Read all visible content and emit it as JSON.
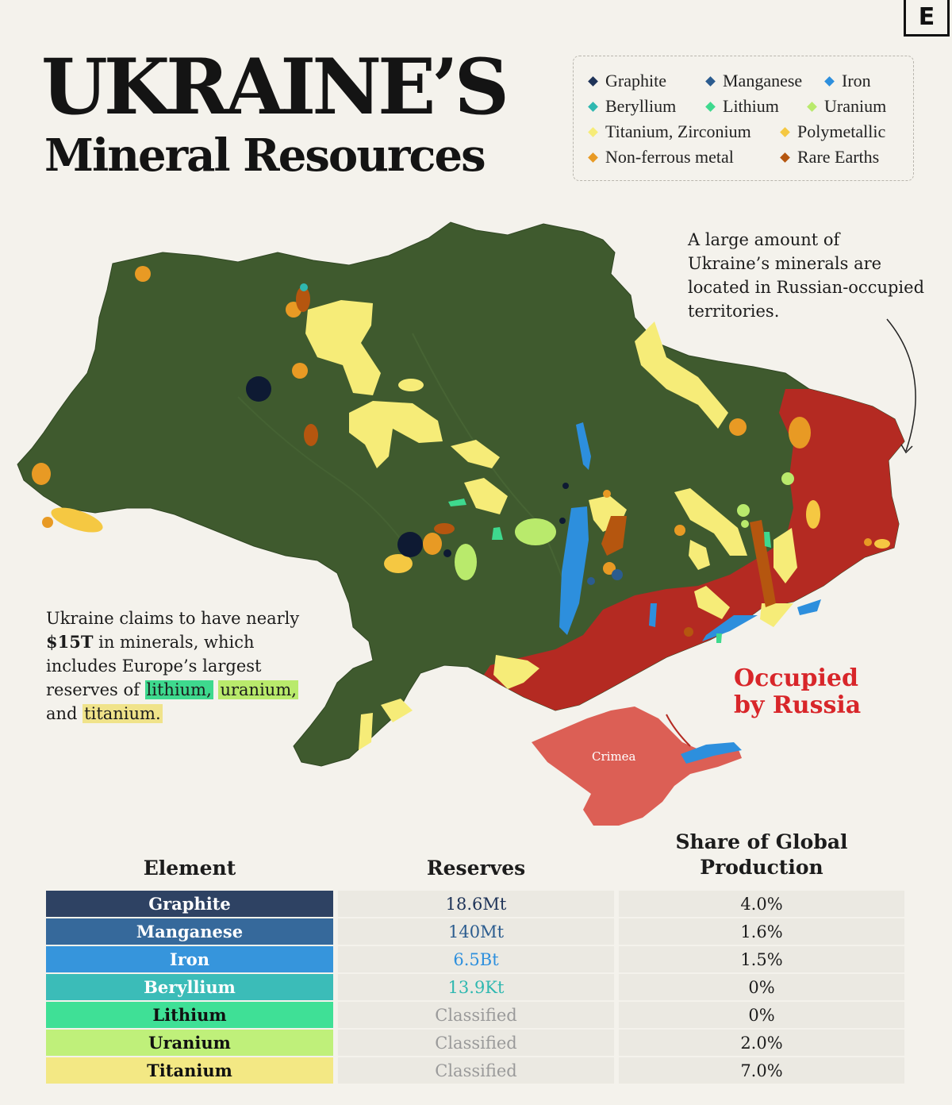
{
  "logo": "E",
  "title": "UKRAINE’S",
  "subtitle": "Mineral Resources",
  "legend": [
    {
      "label": "Graphite",
      "color": "#1e3358"
    },
    {
      "label": "Manganese",
      "color": "#2b5c8f"
    },
    {
      "label": "Iron",
      "color": "#2d8fdd"
    },
    {
      "label": "Beryllium",
      "color": "#2fb8b0"
    },
    {
      "label": "Lithium",
      "color": "#3ed98e"
    },
    {
      "label": "Uranium",
      "color": "#b9ea6c"
    },
    {
      "label": "Titanium, Zirconium",
      "color": "#f6ec78"
    },
    {
      "label": "Polymetallic",
      "color": "#f5c842"
    },
    {
      "label": "Non-ferrous metal",
      "color": "#e89a24"
    },
    {
      "label": "Rare Earths",
      "color": "#b5560f"
    }
  ],
  "annotations": {
    "right_note": "A large amount of Ukraine’s minerals are located in Russian-occupied territories.",
    "left_note": {
      "part1": "Ukraine claims to have nearly ",
      "bold": "$15T",
      "part2": " in minerals, which includes Europe’s largest reserves of ",
      "lithium": "lithium,",
      "uranium": "uranium,",
      "and": " and ",
      "titanium": "titanium."
    },
    "occupied": "Occupied by Russia",
    "crimea": "Crimea"
  },
  "colors": {
    "land": "#3f5a2e",
    "occupied": "#b42a22",
    "crimea": "#dc5f55",
    "lithium_highlight": "#3ed98e",
    "uranium_highlight": "#b9ea6c",
    "titanium_highlight": "#f0e38a"
  },
  "table": {
    "headers": {
      "element": "Element",
      "reserves": "Reserves",
      "share": "Share of Global Production"
    },
    "rows": [
      {
        "element": "Graphite",
        "reserves": "18.6Mt",
        "share": "4.0%",
        "color": "#2e4263",
        "text_color": "#ffffff",
        "reserve_color": "#1e3358"
      },
      {
        "element": "Manganese",
        "reserves": "140Mt",
        "share": "1.6%",
        "color": "#36699b",
        "text_color": "#ffffff",
        "reserve_color": "#2b5c8f"
      },
      {
        "element": "Iron",
        "reserves": "6.5Bt",
        "share": "1.5%",
        "color": "#3695dc",
        "text_color": "#ffffff",
        "reserve_color": "#2d8fdd"
      },
      {
        "element": "Beryllium",
        "reserves": "13.9Kt",
        "share": "0%",
        "color": "#3bbcb8",
        "text_color": "#ffffff",
        "reserve_color": "#2fb8b0"
      },
      {
        "element": "Lithium",
        "reserves": "Classified",
        "share": "0%",
        "color": "#3fe096",
        "text_color": "#111111",
        "reserve_color": "#9a9a9a"
      },
      {
        "element": "Uranium",
        "reserves": "Classified",
        "share": "2.0%",
        "color": "#bff07a",
        "text_color": "#111111",
        "reserve_color": "#9a9a9a"
      },
      {
        "element": "Titanium",
        "reserves": "Classified",
        "share": "7.0%",
        "color": "#f3e884",
        "text_color": "#111111",
        "reserve_color": "#9a9a9a"
      }
    ]
  }
}
